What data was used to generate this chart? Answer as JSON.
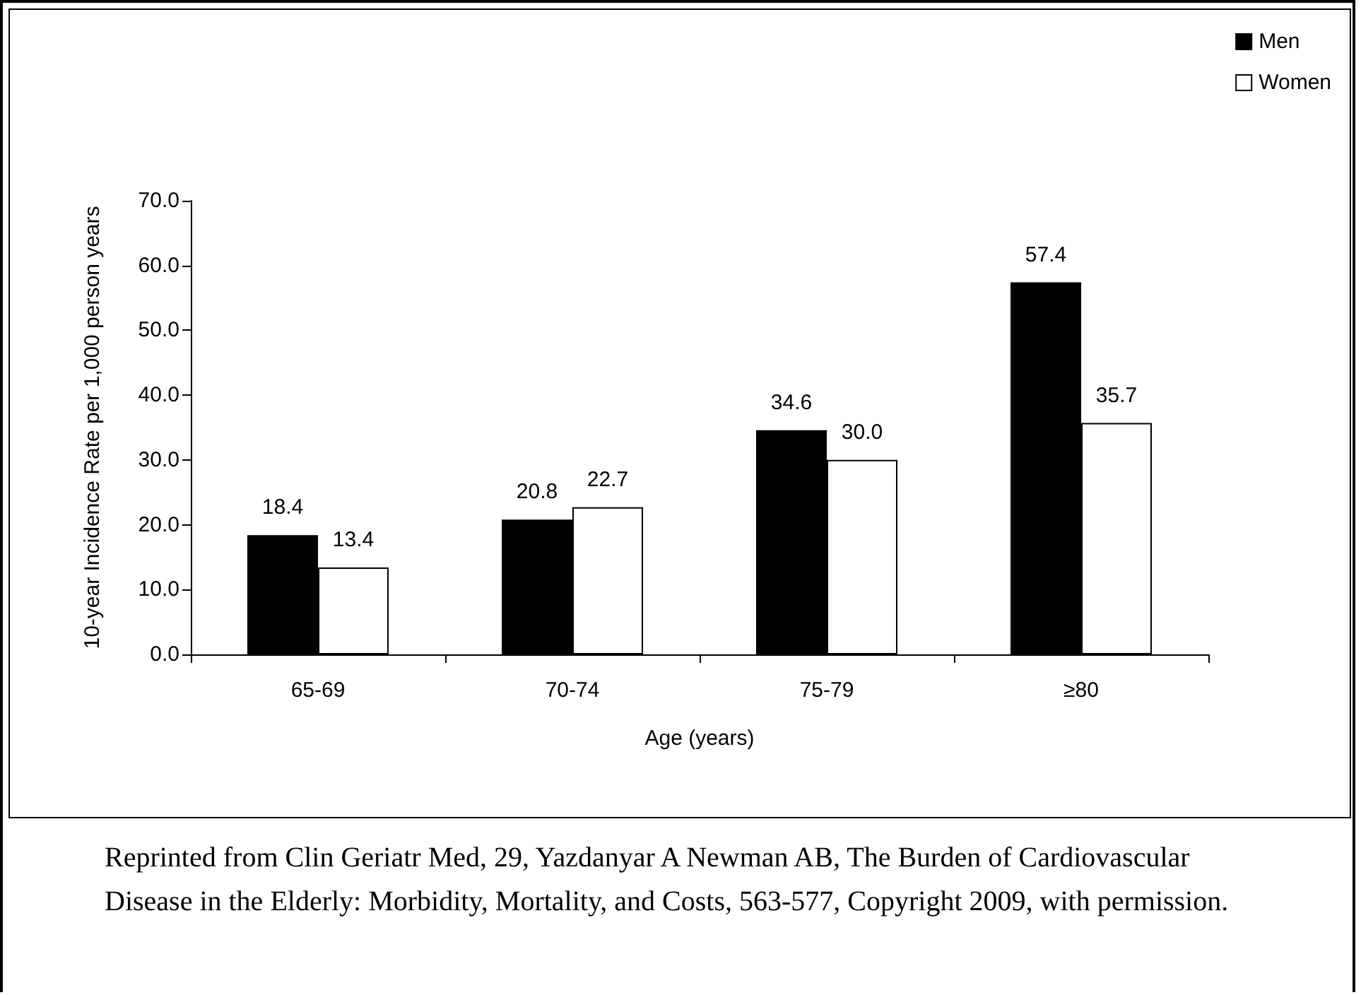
{
  "chart_data": {
    "type": "bar",
    "xlabel": "Age (years)",
    "ylabel": "10-year Incidence Rate per 1,000 person years",
    "categories": [
      "65-69",
      "70-74",
      "75-79",
      "≥80"
    ],
    "series": [
      {
        "name": "Men",
        "color": "#000000",
        "values": [
          18.4,
          20.8,
          34.6,
          57.4
        ],
        "value_labels": [
          "18.4",
          "20.8",
          "34.6",
          "57.4"
        ]
      },
      {
        "name": "Women",
        "color": "#ffffff",
        "values": [
          13.4,
          22.7,
          30.0,
          35.7
        ],
        "value_labels": [
          "13.4",
          "22.7",
          "30.0",
          "35.7"
        ]
      }
    ],
    "ylim": [
      0,
      70
    ],
    "yticks": [
      {
        "value": 0,
        "label": "0.0"
      },
      {
        "value": 10,
        "label": "10.0"
      },
      {
        "value": 20,
        "label": "20.0"
      },
      {
        "value": 30,
        "label": "30.0"
      },
      {
        "value": 40,
        "label": "40.0"
      },
      {
        "value": 50,
        "label": "50.0"
      },
      {
        "value": 60,
        "label": "60.0"
      },
      {
        "value": 70,
        "label": "70.0"
      }
    ],
    "grid": false,
    "legend": "top right",
    "marker": "square",
    "annotations": [
      "Reprinted from Clin Geriatr Med, 29, Yazdanyar A Newman AB, The Burden of Cardiovascular Disease in the Elderly: Morbidity, Mortality, and Costs, 563-577, Copyright 2009, with permission."
    ]
  }
}
